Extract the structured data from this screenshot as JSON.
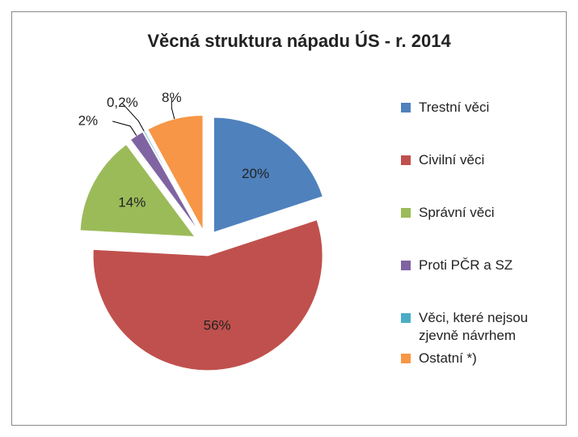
{
  "chart_data": {
    "type": "pie",
    "title": "Věcná struktura nápadu ÚS - r. 2014",
    "categories": [
      "Trestní věci",
      "Civilní věci",
      "Správní věci",
      "Proti PČR a SZ",
      "Věci, které nejsou zjevně návrhem",
      "Ostatní *)"
    ],
    "values": [
      20,
      56,
      14,
      2,
      0.2,
      8
    ],
    "value_labels": [
      "20%",
      "56%",
      "14%",
      "2%",
      "0,2%",
      "8%"
    ],
    "colors": [
      "#4f81bd",
      "#c0504d",
      "#9bbb59",
      "#8064a2",
      "#4bacc6",
      "#f79646"
    ],
    "legend": "right"
  }
}
